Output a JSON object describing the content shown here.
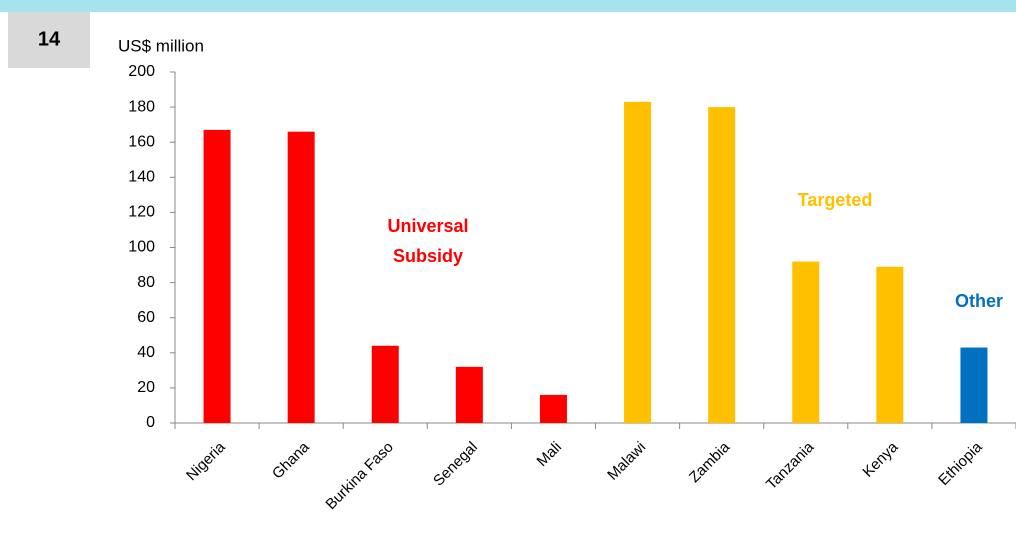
{
  "page_number": "14",
  "chart_data": {
    "type": "bar",
    "y_axis_label": "US$ million",
    "categories": [
      "Nigeria",
      "Ghana",
      "Burkina Faso",
      "Senegal",
      "Mali",
      "Malawi",
      "Zambia",
      "Tanzania",
      "Kenya",
      "Ethiopia"
    ],
    "values": [
      167,
      166,
      44,
      32,
      16,
      183,
      180,
      92,
      89,
      43
    ],
    "colors": [
      "#ff0000",
      "#ff0000",
      "#ff0000",
      "#ff0000",
      "#ff0000",
      "#ffc000",
      "#ffc000",
      "#ffc000",
      "#ffc000",
      "#0070c0"
    ],
    "ylim": [
      0,
      200
    ],
    "yticks": [
      0,
      20,
      40,
      60,
      80,
      100,
      120,
      140,
      160,
      180,
      200
    ],
    "annotations": [
      {
        "text": [
          "Universal",
          "Subsidy"
        ],
        "color": "#ff0000"
      },
      {
        "text": [
          "Targeted"
        ],
        "color": "#ffc000"
      },
      {
        "text": [
          "Other"
        ],
        "color": "#0070c0"
      }
    ]
  }
}
